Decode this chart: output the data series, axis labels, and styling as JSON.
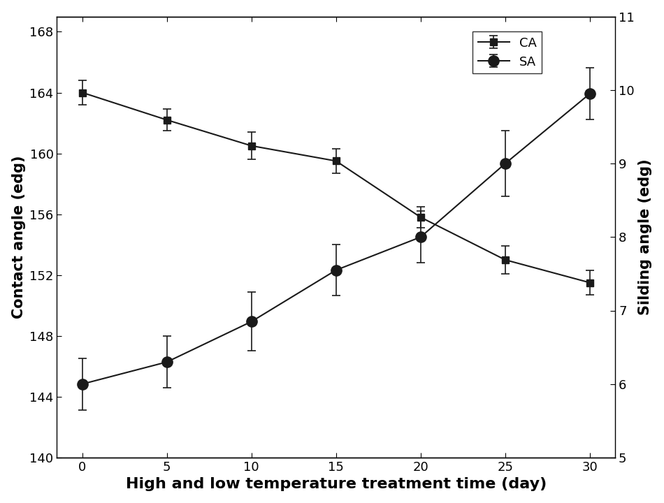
{
  "x": [
    0,
    5,
    10,
    15,
    20,
    25,
    30
  ],
  "CA_values": [
    164.0,
    162.2,
    160.5,
    159.5,
    155.8,
    153.0,
    151.5
  ],
  "CA_errors": [
    0.8,
    0.7,
    0.9,
    0.8,
    0.7,
    0.9,
    0.8
  ],
  "SA_values": [
    6.0,
    6.3,
    6.85,
    7.55,
    8.0,
    9.0,
    9.95
  ],
  "SA_errors": [
    0.35,
    0.35,
    0.4,
    0.35,
    0.35,
    0.45,
    0.35
  ],
  "xlabel": "High and low temperature treatment time (day)",
  "ylabel_left": "Contact angle (edg)",
  "ylabel_right": "Silding angle (edg)",
  "legend_CA": "CA",
  "legend_SA": "SA",
  "ylim_left": [
    140,
    169
  ],
  "ylim_right": [
    5,
    11
  ],
  "yticks_left": [
    140,
    144,
    148,
    152,
    156,
    160,
    164,
    168
  ],
  "yticks_right": [
    5,
    6,
    7,
    8,
    9,
    10,
    11
  ],
  "xticks": [
    0,
    5,
    10,
    15,
    20,
    25,
    30
  ],
  "line_color": "#1a1a1a",
  "marker_CA": "s",
  "marker_SA": "o",
  "markersize_CA": 7,
  "markersize_SA": 11,
  "linewidth": 1.5,
  "xlabel_fontsize": 16,
  "ylabel_fontsize": 15,
  "tick_fontsize": 13,
  "legend_fontsize": 13,
  "capsize": 4,
  "elinewidth": 1.2
}
